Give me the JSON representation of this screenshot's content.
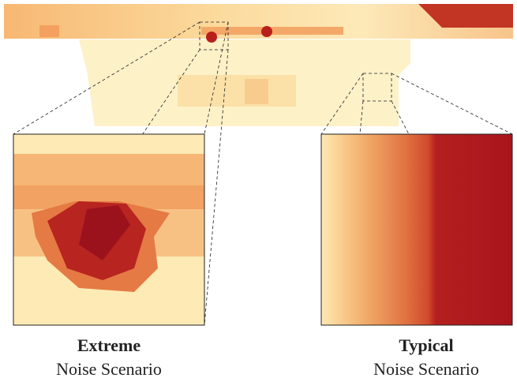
{
  "panels": [
    {
      "title": "Extreme",
      "subtitle": "Noise Scenario"
    },
    {
      "title": "Typical",
      "subtitle": "Noise Scenario"
    }
  ]
}
